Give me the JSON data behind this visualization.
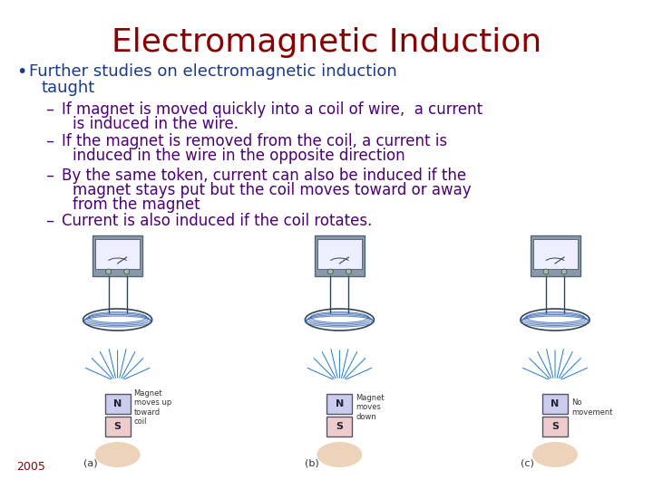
{
  "title": "Electromagnetic Induction",
  "title_color": "#8B0000",
  "title_fontsize": 26,
  "bg_color": "#FFFFFF",
  "bullet_color": "#1a3a8a",
  "bullet_fontsize": 13,
  "sub_bullet_color": "#4b0075",
  "sub_bullet_fontsize": 12,
  "bullet_text_line1": "Further studies on electromagnetic induction",
  "bullet_text_line2": "taught",
  "sub_bullets": [
    [
      "If magnet is moved quickly into a coil of wire,  a current",
      "is induced in the wire."
    ],
    [
      "If the magnet is removed from the coil, a current is",
      "induced in the wire in the opposite direction"
    ],
    [
      "By the same token, current can also be induced if the",
      "magnet stays put but the coil moves toward or away",
      "from the magnet"
    ],
    [
      "Current is also induced if the coil rotates."
    ]
  ],
  "year_text": "2005",
  "year_color": "#8B0000",
  "year_fontsize": 9
}
